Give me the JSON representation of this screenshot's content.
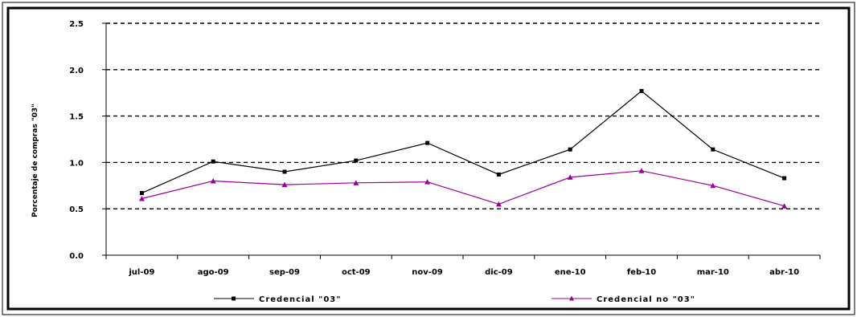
{
  "chart_data": {
    "type": "line",
    "categories": [
      "jul-09",
      "ago-09",
      "sep-09",
      "oct-09",
      "nov-09",
      "dic-09",
      "ene-10",
      "feb-10",
      "mar-10",
      "abr-10"
    ],
    "series": [
      {
        "name": "Credencial \"03\"",
        "values": [
          0.67,
          1.01,
          0.9,
          1.02,
          1.21,
          0.87,
          1.14,
          1.77,
          1.14,
          0.83
        ],
        "color": "#000000",
        "marker": "square"
      },
      {
        "name": "Credencial no \"03\"",
        "values": [
          0.61,
          0.8,
          0.76,
          0.78,
          0.79,
          0.55,
          0.84,
          0.91,
          0.75,
          0.53
        ],
        "color": "#990099",
        "marker": "triangle"
      }
    ],
    "yticks": [
      "0.0",
      "0.5",
      "1.0",
      "1.5",
      "2.0",
      "2.5"
    ],
    "ylim": [
      0,
      2.5
    ],
    "ylabel": "Porcentaje de compras \"03\"",
    "grid": "horizontal dashed",
    "legend_position": "bottom"
  }
}
